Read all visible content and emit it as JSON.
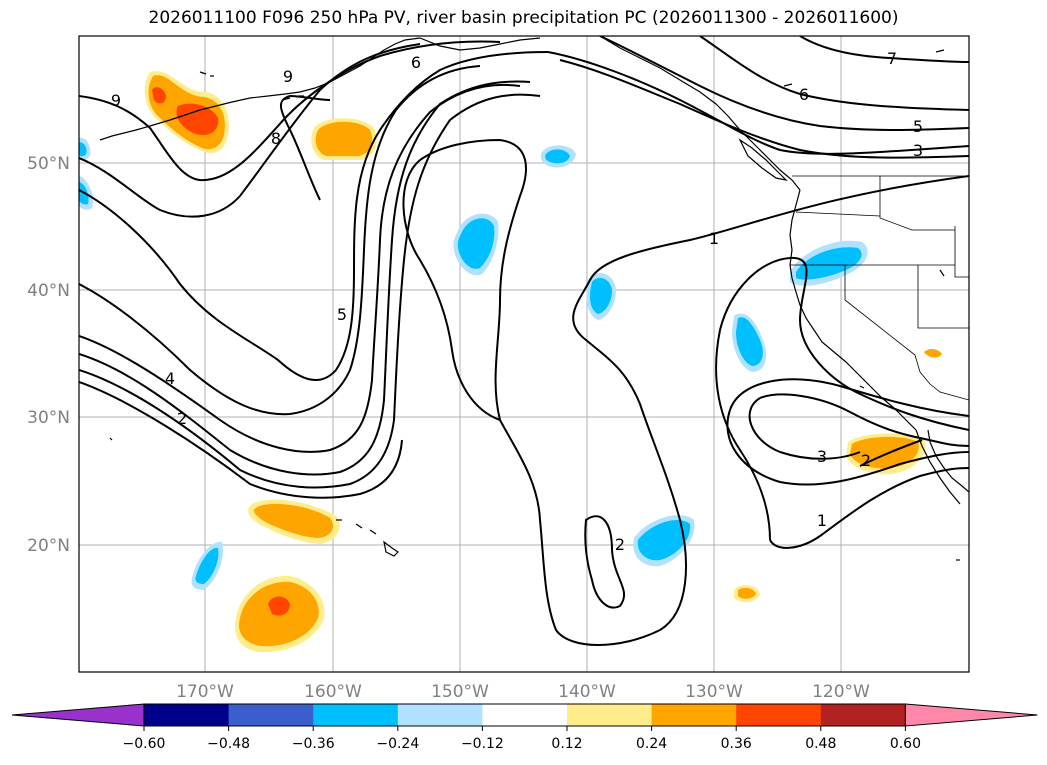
{
  "title": "2026011100 F096 250 hPa PV, river basin precipitation PC (2026011300 - 2026011600)",
  "map": {
    "lat_labels": [
      "50°N",
      "40°N",
      "30°N",
      "20°N"
    ],
    "lon_labels": [
      "170°W",
      "160°W",
      "150°W",
      "140°W",
      "130°W",
      "120°W"
    ],
    "pv_contour_labels": [
      "9",
      "9",
      "8",
      "6",
      "5",
      "4",
      "2",
      "1",
      "7",
      "6",
      "5",
      "3",
      "1",
      "2",
      "3",
      "2",
      "1"
    ],
    "colors": {
      "land_outline": "#000000",
      "grid": "#b0b0b0",
      "pv_contour": "#000000"
    }
  },
  "colorbar": {
    "ticks": [
      "−0.60",
      "−0.48",
      "−0.36",
      "−0.24",
      "−0.12",
      "0.12",
      "0.24",
      "0.36",
      "0.48",
      "0.60"
    ],
    "colors": [
      "#9932cc",
      "#00008b",
      "#3a5fcd",
      "#00bfff",
      "#b0e2ff",
      "#ffffff",
      "#ffec8b",
      "#ffa500",
      "#ff4500",
      "#b22222",
      "#ff88aa"
    ]
  }
}
